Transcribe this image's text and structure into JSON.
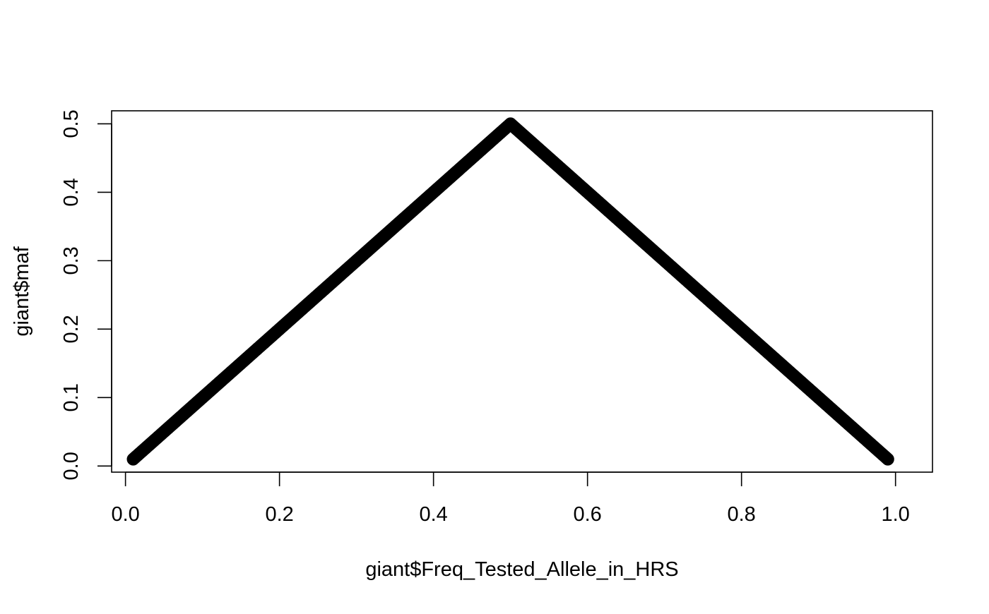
{
  "chart_data": {
    "type": "scatter",
    "title": "",
    "xlabel": "giant$Freq_Tested_Allele_in_HRS",
    "ylabel": "giant$maf",
    "xlim": [
      -0.018,
      1.048
    ],
    "ylim": [
      -0.009,
      0.519
    ],
    "x_ticks": [
      0.0,
      0.2,
      0.4,
      0.6,
      0.8,
      1.0
    ],
    "x_tick_labels": [
      "0.0",
      "0.2",
      "0.4",
      "0.6",
      "0.8",
      "1.0"
    ],
    "y_ticks": [
      0.0,
      0.1,
      0.2,
      0.3,
      0.4,
      0.5
    ],
    "y_tick_labels": [
      "0.0",
      "0.1",
      "0.2",
      "0.3",
      "0.4",
      "0.5"
    ],
    "grid": false,
    "legend": "none",
    "point_color": "#000000",
    "x_range": [
      0.01,
      0.99
    ],
    "series": [
      {
        "x": [
          0.01,
          0.05,
          0.1,
          0.15,
          0.2,
          0.25,
          0.3,
          0.35,
          0.4,
          0.45,
          0.5,
          0.55,
          0.6,
          0.65,
          0.7,
          0.75,
          0.8,
          0.85,
          0.9,
          0.95,
          0.99
        ],
        "y": [
          0.01,
          0.05,
          0.1,
          0.15,
          0.2,
          0.25,
          0.3,
          0.35,
          0.4,
          0.45,
          0.5,
          0.45,
          0.4,
          0.35,
          0.3,
          0.25,
          0.2,
          0.15,
          0.1,
          0.05,
          0.01
        ]
      }
    ]
  }
}
